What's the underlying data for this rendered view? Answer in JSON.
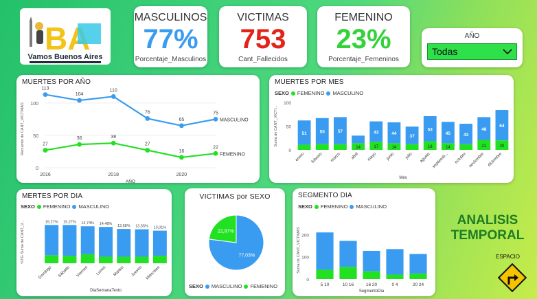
{
  "logo": {
    "text": "Vamos Buenos Aires",
    "mark": "BA"
  },
  "kpis": {
    "masculinos": {
      "title": "MASCULINOS",
      "value": "77%",
      "sub": "Porcentaje_Masculinos",
      "color": "#3a9cf0"
    },
    "victimas": {
      "title": "VICTIMAS",
      "value": "753",
      "sub": "Cant_Fallecidos",
      "color": "#e2231a"
    },
    "femenino": {
      "title": "FEMENINO",
      "value": "23%",
      "sub": "Porcentaje_Femeninos",
      "color": "#34d23a"
    }
  },
  "slicer": {
    "title": "AÑO",
    "selected": "Todas"
  },
  "colors": {
    "masc": "#3a9cf0",
    "fem": "#22e022"
  },
  "headline": {
    "line1": "ANALISIS",
    "line2": "TEMPORAL",
    "espacio": "ESPACIO"
  },
  "chart_data": [
    {
      "id": "por_anio",
      "type": "line",
      "title": "MUERTES POR AÑO",
      "xlabel": "AÑO",
      "ylabel": "Recuento de CANT_VICTIMAS",
      "x": [
        2016,
        2017,
        2018,
        2019,
        2020,
        2021
      ],
      "x_ticks": [
        "2016",
        "2018",
        "2020"
      ],
      "y_ticks": [
        "0",
        "50",
        "100"
      ],
      "ylim": [
        0,
        120
      ],
      "series": [
        {
          "name": "MASCULINO",
          "values": [
            113,
            104,
            110,
            76,
            65,
            75
          ]
        },
        {
          "name": "FEMENINO",
          "values": [
            27,
            36,
            38,
            27,
            16,
            22
          ]
        }
      ]
    },
    {
      "id": "por_mes",
      "type": "bar",
      "title": "MUERTES POR MES",
      "xlabel": "Mes",
      "ylabel": "Suma de CANT_VICTI...",
      "legend_title": "SEXO",
      "legend": [
        "FEMENINO",
        "MASCULINO"
      ],
      "categories": [
        "enero",
        "febrero",
        "marzo",
        "abril",
        "mayo",
        "junio",
        "julio",
        "agosto",
        "septiemb...",
        "octubre",
        "noviembre",
        "diciembre"
      ],
      "y_ticks": [
        "0",
        "50",
        "100"
      ],
      "ylim": [
        0,
        100
      ],
      "series": [
        {
          "name": "FEMENINO",
          "values": [
            11,
            12,
            12,
            14,
            17,
            14,
            12,
            18,
            14,
            12,
            21,
            20
          ]
        },
        {
          "name": "MASCULINO",
          "values": [
            51,
            55,
            57,
            16,
            43,
            44,
            37,
            53,
            45,
            43,
            48,
            64
          ]
        }
      ],
      "labels_fem": [
        "",
        "",
        "",
        "14",
        "17",
        "14",
        "",
        "18",
        "14",
        "",
        "21",
        "20"
      ],
      "labels_masc": [
        "51",
        "55",
        "57",
        "",
        "43",
        "44",
        "37",
        "53",
        "45",
        "43",
        "48",
        "64"
      ]
    },
    {
      "id": "por_dia",
      "type": "bar",
      "title": "MERTES POR DIA",
      "xlabel": "DiaSemanaTexto",
      "ylabel": "%TG Suma de CANT_V...",
      "legend_title": "SEXO",
      "legend": [
        "FEMENINO",
        "MASCULINO"
      ],
      "categories": [
        "Domingo",
        "Sábado",
        "Viernes",
        "Lunes",
        "Martes",
        "Jueves",
        "Miércoles"
      ],
      "totals": [
        15.27,
        15.27,
        14.74,
        14.48,
        13.68,
        13.55,
        13.01
      ],
      "total_labels": [
        "15,27%",
        "15,27%",
        "14,74%",
        "14,48%",
        "13,68%",
        "13,55%",
        "13,01%"
      ],
      "series": [
        {
          "name": "FEMENINO",
          "values": [
            3.2,
            3.0,
            3.6,
            2.6,
            2.6,
            2.6,
            3.0
          ]
        },
        {
          "name": "MASCULINO",
          "values": [
            12.07,
            12.27,
            11.14,
            11.88,
            11.08,
            10.95,
            10.01
          ]
        }
      ]
    },
    {
      "id": "por_sexo",
      "type": "pie",
      "title": "VICTIMAS por SEXO",
      "legend_title": "SEXO",
      "slices": [
        {
          "name": "MASCULINO",
          "value": 77.03,
          "label": "77,03%"
        },
        {
          "name": "FEMENINO",
          "value": 22.97,
          "label": "22,97%"
        }
      ]
    },
    {
      "id": "segmento",
      "type": "bar",
      "title": "SEGMENTO DIA",
      "xlabel": "SegmentoDia",
      "ylabel": "Suma de CANT_VICTIMAS",
      "legend_title": "SEXO",
      "legend": [
        "FEMENINO",
        "MASCULINO"
      ],
      "categories": [
        "5 10",
        "10 16",
        "16 20",
        "0 4",
        "20 24"
      ],
      "y_ticks": [
        "0",
        "100",
        "200"
      ],
      "ylim": [
        0,
        260
      ],
      "series": [
        {
          "name": "FEMENINO",
          "values": [
            42,
            55,
            35,
            20,
            25
          ]
        },
        {
          "name": "MASCULINO",
          "values": [
            168,
            117,
            92,
            115,
            88
          ]
        }
      ]
    }
  ]
}
